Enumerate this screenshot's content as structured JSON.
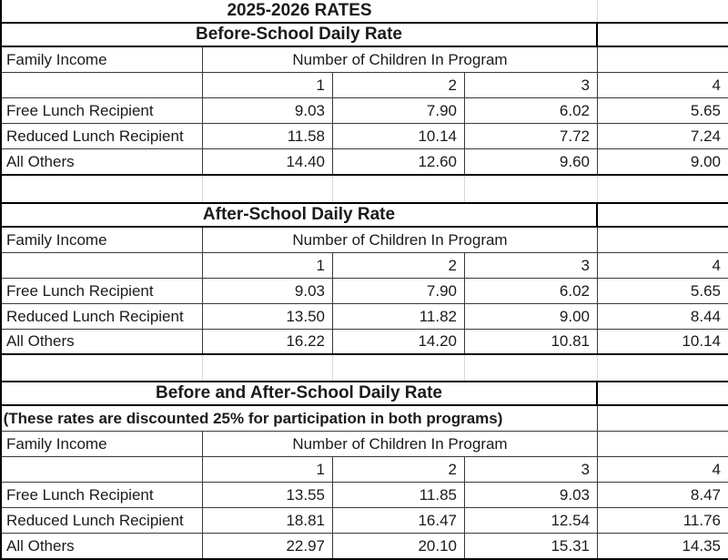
{
  "page_title": "2025-2026 RATES",
  "table": {
    "family_income_label": "Family Income",
    "children_header": "Number of Children In Program",
    "child_counts": [
      "1",
      "2",
      "3",
      "4"
    ]
  },
  "sections": [
    {
      "title": "Before-School Daily Rate",
      "rows": [
        {
          "label": "Free Lunch Recipient",
          "values": [
            "9.03",
            "7.90",
            "6.02",
            "5.65"
          ]
        },
        {
          "label": "Reduced Lunch Recipient",
          "values": [
            "11.58",
            "10.14",
            "7.72",
            "7.24"
          ]
        },
        {
          "label": "All Others",
          "values": [
            "14.40",
            "12.60",
            "9.60",
            "9.00"
          ]
        }
      ]
    },
    {
      "title": "After-School Daily Rate",
      "rows": [
        {
          "label": "Free Lunch Recipient",
          "values": [
            "9.03",
            "7.90",
            "6.02",
            "5.65"
          ]
        },
        {
          "label": "Reduced Lunch Recipient",
          "values": [
            "13.50",
            "11.82",
            "9.00",
            "8.44"
          ]
        },
        {
          "label": "All Others",
          "values": [
            "16.22",
            "14.20",
            "10.81",
            "10.14"
          ]
        }
      ]
    },
    {
      "title": "Before and After-School Daily Rate",
      "note": "(These rates are discounted 25% for participation in both programs)",
      "rows": [
        {
          "label": "Free Lunch Recipient",
          "values": [
            "13.55",
            "11.85",
            "9.03",
            "8.47"
          ]
        },
        {
          "label": "Reduced Lunch Recipient",
          "values": [
            "18.81",
            "16.47",
            "12.54",
            "11.76"
          ]
        },
        {
          "label": "All Others",
          "values": [
            "22.97",
            "20.10",
            "15.31",
            "14.35"
          ]
        }
      ]
    }
  ],
  "colors": {
    "border_thick": "#000000",
    "border_thin": "#3a3a3a",
    "gridline_faint": "#d9d9d9",
    "text": "#1b1b1b"
  }
}
